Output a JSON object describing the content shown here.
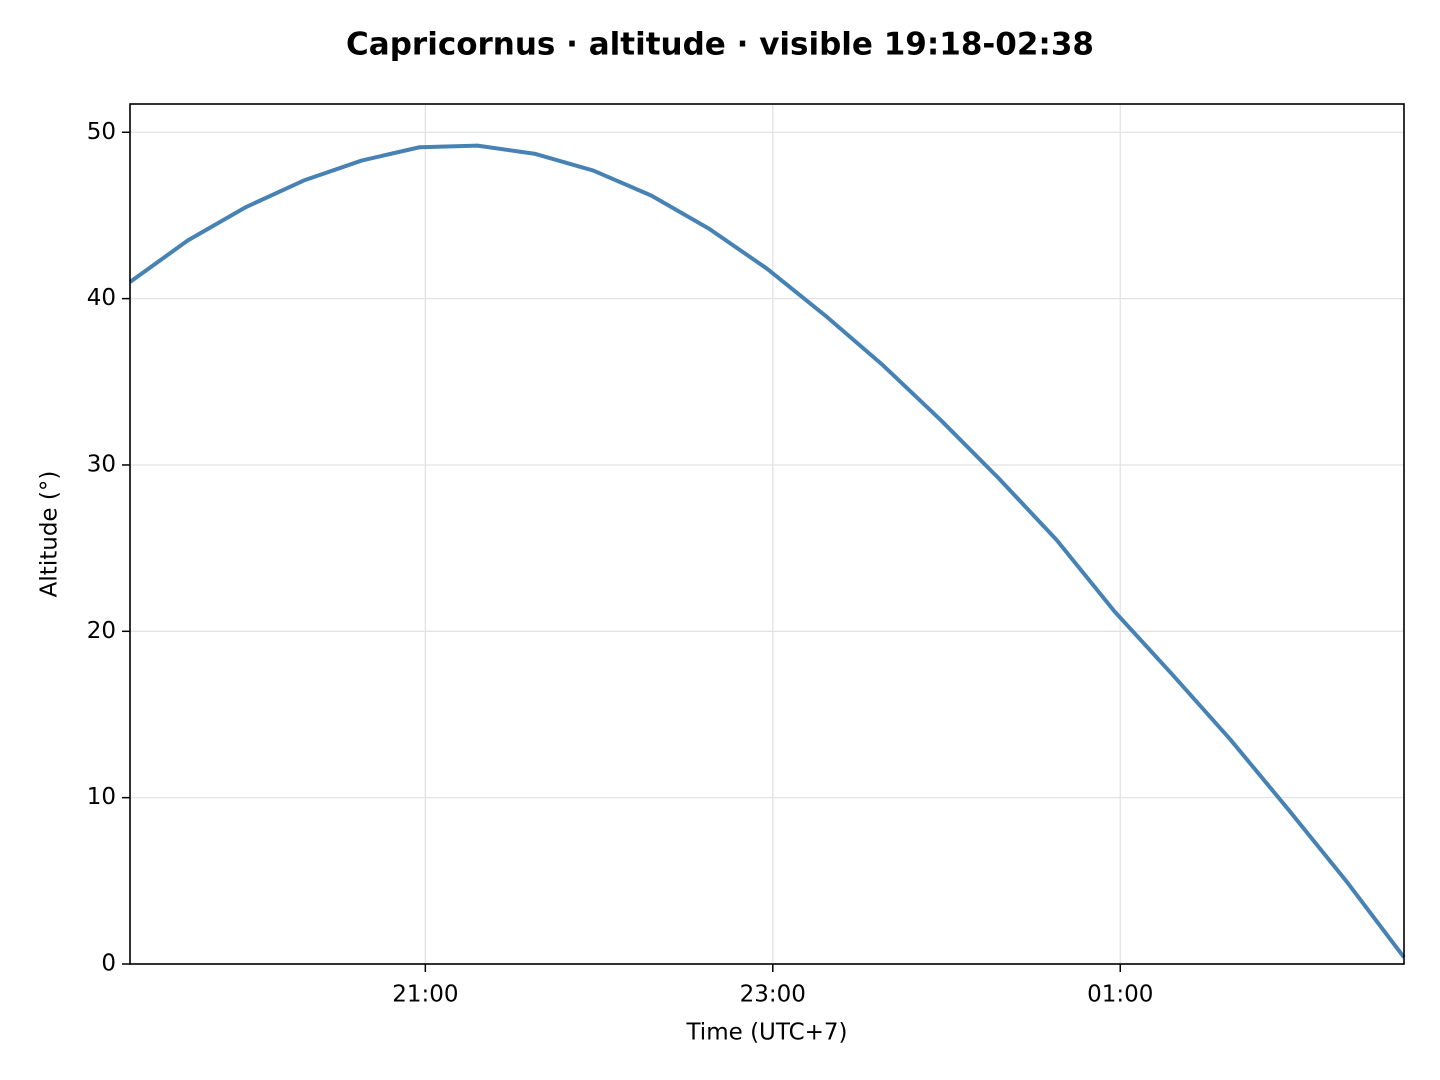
{
  "chart_data": {
    "type": "line",
    "title": "Capricornus · altitude · visible 19:18-02:38",
    "x_label": "Time (UTC+7)",
    "y_label": "Altitude (°)",
    "x": [
      "19:18",
      "19:38",
      "19:58",
      "20:18",
      "20:38",
      "20:58",
      "21:18",
      "21:38",
      "21:58",
      "22:18",
      "22:38",
      "22:58",
      "23:18",
      "23:38",
      "23:58",
      "00:18",
      "00:38",
      "00:58",
      "01:18",
      "01:38",
      "01:58",
      "02:18",
      "02:38"
    ],
    "series": [
      {
        "color": "#4682b4",
        "values": [
          41.0,
          43.5,
          45.5,
          47.1,
          48.3,
          49.1,
          49.2,
          48.7,
          47.7,
          46.2,
          44.2,
          41.8,
          39.0,
          36.0,
          32.7,
          29.2,
          25.5,
          21.2,
          17.4,
          13.5,
          9.3,
          5.0,
          0.4
        ]
      }
    ],
    "xlim": [
      "19:18",
      "02:38"
    ],
    "xticks": [
      "21:00",
      "23:00",
      "01:00"
    ],
    "ylim": [
      0,
      51.7
    ],
    "yticks": [
      0,
      10,
      20,
      30,
      40,
      50
    ],
    "grid": true
  }
}
